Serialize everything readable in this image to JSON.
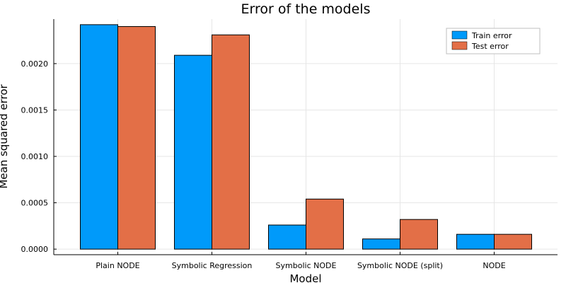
{
  "chart_data": {
    "type": "bar",
    "title": "Error of the models",
    "xlabel": "Model",
    "ylabel": "Mean squared error",
    "categories": [
      "Plain NODE",
      "Symbolic Regression",
      "Symbolic NODE",
      "Symbolic NODE (split)",
      "NODE"
    ],
    "series": [
      {
        "name": "Train error",
        "color": "#009AFA",
        "values": [
          0.00242,
          0.00209,
          0.00026,
          0.00011,
          0.00016
        ]
      },
      {
        "name": "Test error",
        "color": "#E36F47",
        "values": [
          0.0024,
          0.00231,
          0.00054,
          0.00032,
          0.00016
        ]
      }
    ],
    "ylim": [
      -6e-05,
      0.00248
    ],
    "yticks": [
      0.0,
      0.0005,
      0.001,
      0.0015,
      0.002
    ],
    "ytick_labels": [
      "0.0000",
      "0.0005",
      "0.0010",
      "0.0015",
      "0.0020"
    ],
    "grid": true,
    "legend_position": "top-right"
  }
}
